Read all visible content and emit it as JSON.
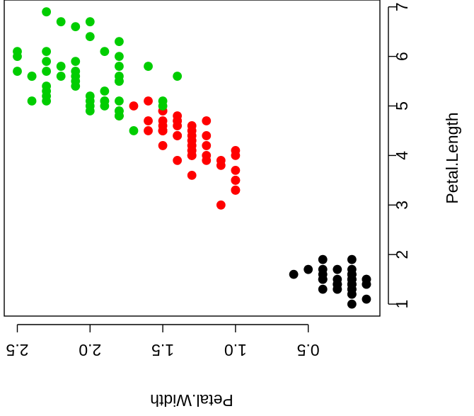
{
  "chart_data": {
    "type": "scatter",
    "title": "",
    "xlabel": "Petal.Width",
    "ylabel": "Petal.Length",
    "x_ticks": [
      "0.5",
      "1.0",
      "1.5",
      "2.0",
      "2.5"
    ],
    "y_ticks": [
      "1",
      "2",
      "3",
      "4",
      "5",
      "6",
      "7"
    ],
    "xlim": [
      0.1,
      2.6
    ],
    "ylim": [
      1.0,
      7.0
    ],
    "x_axis_reversed": true,
    "orientation": "plot rotated 180 degrees (text upside down); x axis at bottom increases leftward, y axis on right",
    "grid": false,
    "legend": "none",
    "colors": {
      "setosa": "#000000",
      "versicolor": "#ff0000",
      "virginica": "#00cd00"
    },
    "series": [
      {
        "color": "#000000",
        "points": [
          [
            0.2,
            1.4
          ],
          [
            0.2,
            1.4
          ],
          [
            0.2,
            1.3
          ],
          [
            0.2,
            1.5
          ],
          [
            0.2,
            1.4
          ],
          [
            0.4,
            1.7
          ],
          [
            0.3,
            1.4
          ],
          [
            0.2,
            1.5
          ],
          [
            0.2,
            1.4
          ],
          [
            0.1,
            1.5
          ],
          [
            0.2,
            1.5
          ],
          [
            0.2,
            1.6
          ],
          [
            0.1,
            1.4
          ],
          [
            0.1,
            1.1
          ],
          [
            0.2,
            1.2
          ],
          [
            0.4,
            1.5
          ],
          [
            0.4,
            1.3
          ],
          [
            0.3,
            1.4
          ],
          [
            0.3,
            1.7
          ],
          [
            0.3,
            1.5
          ],
          [
            0.2,
            1.7
          ],
          [
            0.4,
            1.5
          ],
          [
            0.2,
            1.0
          ],
          [
            0.5,
            1.7
          ],
          [
            0.2,
            1.9
          ],
          [
            0.2,
            1.6
          ],
          [
            0.4,
            1.6
          ],
          [
            0.2,
            1.5
          ],
          [
            0.2,
            1.4
          ],
          [
            0.2,
            1.6
          ],
          [
            0.2,
            1.6
          ],
          [
            0.4,
            1.5
          ],
          [
            0.1,
            1.5
          ],
          [
            0.2,
            1.4
          ],
          [
            0.2,
            1.5
          ],
          [
            0.2,
            1.2
          ],
          [
            0.2,
            1.3
          ],
          [
            0.1,
            1.4
          ],
          [
            0.2,
            1.3
          ],
          [
            0.2,
            1.5
          ],
          [
            0.3,
            1.3
          ],
          [
            0.3,
            1.3
          ],
          [
            0.2,
            1.3
          ],
          [
            0.6,
            1.6
          ],
          [
            0.4,
            1.9
          ],
          [
            0.3,
            1.4
          ],
          [
            0.2,
            1.6
          ],
          [
            0.2,
            1.4
          ],
          [
            0.2,
            1.5
          ],
          [
            0.2,
            1.4
          ]
        ]
      },
      {
        "color": "#ff0000",
        "points": [
          [
            1.4,
            4.7
          ],
          [
            1.5,
            4.5
          ],
          [
            1.5,
            4.9
          ],
          [
            1.3,
            4.0
          ],
          [
            1.5,
            4.6
          ],
          [
            1.3,
            4.5
          ],
          [
            1.6,
            4.7
          ],
          [
            1.0,
            3.3
          ],
          [
            1.3,
            4.6
          ],
          [
            1.4,
            3.9
          ],
          [
            1.0,
            3.5
          ],
          [
            1.5,
            4.2
          ],
          [
            1.0,
            4.0
          ],
          [
            1.4,
            4.7
          ],
          [
            1.3,
            3.6
          ],
          [
            1.4,
            4.4
          ],
          [
            1.5,
            4.5
          ],
          [
            1.0,
            4.1
          ],
          [
            1.5,
            4.5
          ],
          [
            1.1,
            3.9
          ],
          [
            1.8,
            4.8
          ],
          [
            1.3,
            4.0
          ],
          [
            1.5,
            4.9
          ],
          [
            1.2,
            4.7
          ],
          [
            1.3,
            4.3
          ],
          [
            1.4,
            4.4
          ],
          [
            1.4,
            4.8
          ],
          [
            1.7,
            5.0
          ],
          [
            1.5,
            4.5
          ],
          [
            1.0,
            3.5
          ],
          [
            1.1,
            3.8
          ],
          [
            1.0,
            3.7
          ],
          [
            1.2,
            3.9
          ],
          [
            1.6,
            5.1
          ],
          [
            1.5,
            4.5
          ],
          [
            1.6,
            4.5
          ],
          [
            1.5,
            4.7
          ],
          [
            1.3,
            4.4
          ],
          [
            1.3,
            4.1
          ],
          [
            1.3,
            4.0
          ],
          [
            1.2,
            4.4
          ],
          [
            1.4,
            4.6
          ],
          [
            1.2,
            4.0
          ],
          [
            1.0,
            3.3
          ],
          [
            1.3,
            4.2
          ],
          [
            1.2,
            4.2
          ],
          [
            1.3,
            4.2
          ],
          [
            1.3,
            4.3
          ],
          [
            1.1,
            3.0
          ],
          [
            1.3,
            4.1
          ]
        ]
      },
      {
        "color": "#00cd00",
        "points": [
          [
            2.5,
            6.0
          ],
          [
            1.9,
            5.1
          ],
          [
            2.1,
            5.9
          ],
          [
            1.8,
            5.6
          ],
          [
            2.2,
            5.8
          ],
          [
            2.1,
            6.6
          ],
          [
            1.7,
            4.5
          ],
          [
            1.8,
            6.3
          ],
          [
            1.8,
            5.8
          ],
          [
            2.5,
            6.1
          ],
          [
            2.0,
            5.1
          ],
          [
            1.9,
            5.3
          ],
          [
            2.1,
            5.5
          ],
          [
            2.0,
            5.0
          ],
          [
            2.4,
            5.1
          ],
          [
            2.3,
            5.3
          ],
          [
            1.8,
            5.5
          ],
          [
            2.2,
            6.7
          ],
          [
            2.3,
            6.9
          ],
          [
            1.5,
            5.0
          ],
          [
            2.3,
            5.7
          ],
          [
            2.0,
            4.9
          ],
          [
            2.0,
            6.7
          ],
          [
            1.8,
            4.9
          ],
          [
            2.1,
            5.7
          ],
          [
            1.8,
            6.0
          ],
          [
            1.8,
            4.8
          ],
          [
            1.8,
            4.9
          ],
          [
            2.1,
            5.6
          ],
          [
            1.6,
            5.8
          ],
          [
            1.9,
            6.1
          ],
          [
            2.0,
            6.4
          ],
          [
            2.2,
            5.6
          ],
          [
            1.5,
            5.1
          ],
          [
            1.4,
            5.6
          ],
          [
            2.3,
            6.1
          ],
          [
            2.4,
            5.6
          ],
          [
            1.8,
            5.5
          ],
          [
            1.8,
            4.8
          ],
          [
            2.1,
            5.4
          ],
          [
            2.4,
            5.6
          ],
          [
            2.3,
            5.1
          ],
          [
            1.9,
            5.1
          ],
          [
            2.3,
            5.9
          ],
          [
            2.5,
            5.7
          ],
          [
            2.3,
            5.2
          ],
          [
            1.9,
            5.0
          ],
          [
            2.0,
            5.2
          ],
          [
            2.3,
            5.4
          ],
          [
            1.8,
            5.1
          ]
        ]
      }
    ]
  }
}
